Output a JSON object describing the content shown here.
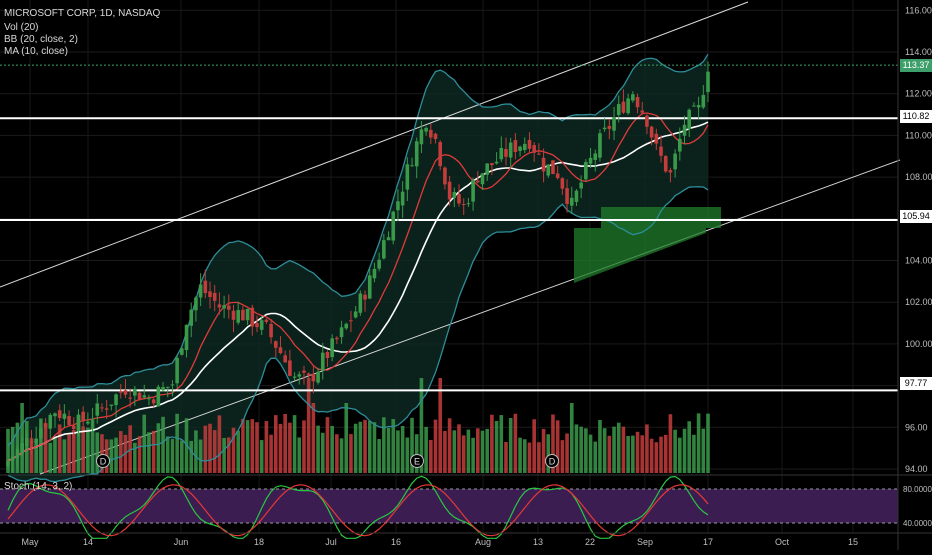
{
  "legend": {
    "symbol": "MICROSOFT CORP, 1D, NASDAQ",
    "volume": "Vol (20)",
    "bollinger": "BB (20, close, 2)",
    "moving_average": "MA (10, close)",
    "stoch": "Stoch (14, 3, 2)"
  },
  "price_tags": {
    "last": "113.37",
    "resistance": "110.82",
    "support": "105.94",
    "low_line": "97.77"
  },
  "markers": [
    "D",
    "E",
    "D"
  ],
  "colors": {
    "up": "#3a9a4a",
    "down": "#c43c3c",
    "bb": "#2f8d9a",
    "ma_red": "#e03a3a",
    "ma_white": "#ffffff",
    "stoch_bg": "#3b1d52",
    "stoch_k": "#28c840",
    "stoch_d": "#e53935",
    "last_tag": "#3d9f6a",
    "zone": "#1f7d2b"
  },
  "chart_data": {
    "type": "candlestick",
    "y_axis": {
      "ticks": [
        116,
        114,
        112,
        110,
        108,
        106,
        104,
        102,
        100,
        98,
        96,
        94
      ],
      "ylim": [
        93.2,
        117.2
      ]
    },
    "x_axis": {
      "ticks": [
        "May",
        "14",
        "Jun",
        "18",
        "Jul",
        "16",
        "Aug",
        "13",
        "22",
        "Sep",
        "17",
        "Oct",
        "15"
      ]
    },
    "horizontal_levels": [
      110.82,
      105.94,
      97.77
    ],
    "last_price": 113.37,
    "stoch_levels": [
      80,
      40
    ],
    "stoch_ticks": [
      "80.0000",
      "40.0000"
    ],
    "close_path": [
      [
        0,
        94.4
      ],
      [
        6,
        95.8
      ],
      [
        10,
        96.8
      ],
      [
        15,
        96.2
      ],
      [
        20,
        96.9
      ],
      [
        25,
        97.9
      ],
      [
        30,
        97.4
      ],
      [
        35,
        98.1
      ],
      [
        38,
        101.2
      ],
      [
        41,
        102.7
      ],
      [
        45,
        101.8
      ],
      [
        50,
        101.4
      ],
      [
        55,
        100.7
      ],
      [
        58,
        99.6
      ],
      [
        61,
        98.4
      ],
      [
        64,
        98.2
      ],
      [
        67,
        99.2
      ],
      [
        71,
        100.5
      ],
      [
        74,
        101.6
      ],
      [
        77,
        103.0
      ],
      [
        80,
        104.9
      ],
      [
        83,
        106.9
      ],
      [
        86,
        109.0
      ],
      [
        89,
        110.8
      ],
      [
        91,
        109.8
      ],
      [
        94,
        107.1
      ],
      [
        97,
        106.6
      ],
      [
        100,
        108.1
      ],
      [
        104,
        108.8
      ],
      [
        108,
        109.5
      ],
      [
        111,
        109.8
      ],
      [
        114,
        108.6
      ],
      [
        117,
        108.2
      ],
      [
        120,
        106.6
      ],
      [
        123,
        108.3
      ],
      [
        126,
        109.7
      ],
      [
        130,
        111.2
      ],
      [
        133,
        112.1
      ],
      [
        136,
        110.8
      ],
      [
        138,
        109.3
      ],
      [
        141,
        108.1
      ],
      [
        144,
        110.6
      ],
      [
        147,
        111.2
      ],
      [
        149,
        113.4
      ]
    ]
  }
}
